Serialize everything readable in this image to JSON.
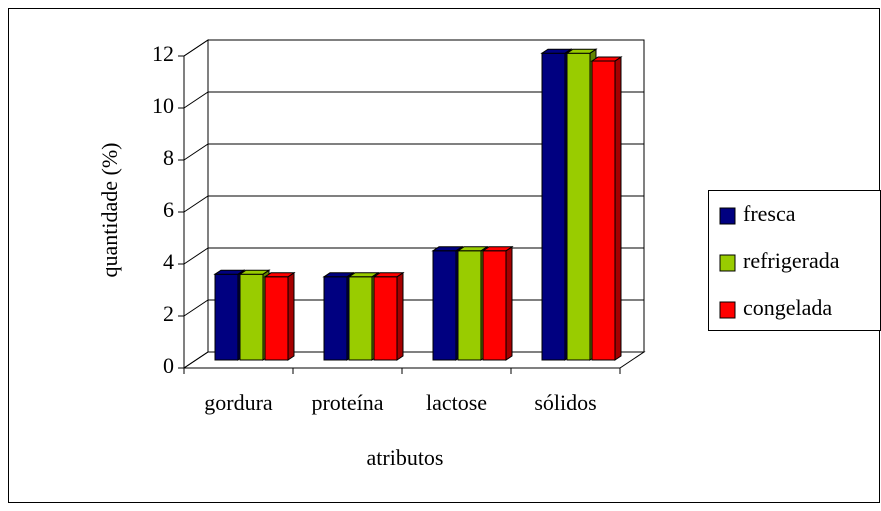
{
  "chart_data": {
    "type": "bar3d",
    "x_label": "atributos",
    "y_label": "quantidade (%)",
    "categories": [
      "gordura",
      "proteína",
      "lactose",
      "sólidos"
    ],
    "series": [
      {
        "name": "fresca",
        "color": "#000080",
        "values": [
          3.3,
          3.2,
          4.2,
          11.8
        ]
      },
      {
        "name": "refrigerada",
        "color": "#99cc00",
        "values": [
          3.3,
          3.2,
          4.2,
          11.8
        ]
      },
      {
        "name": "congelada",
        "color": "#ff0000",
        "values": [
          3.2,
          3.2,
          4.2,
          11.5
        ]
      }
    ],
    "ylim": [
      0,
      12
    ],
    "yticks": [
      0,
      2,
      4,
      6,
      8,
      10,
      12
    ],
    "grid": true,
    "legend": "right"
  }
}
